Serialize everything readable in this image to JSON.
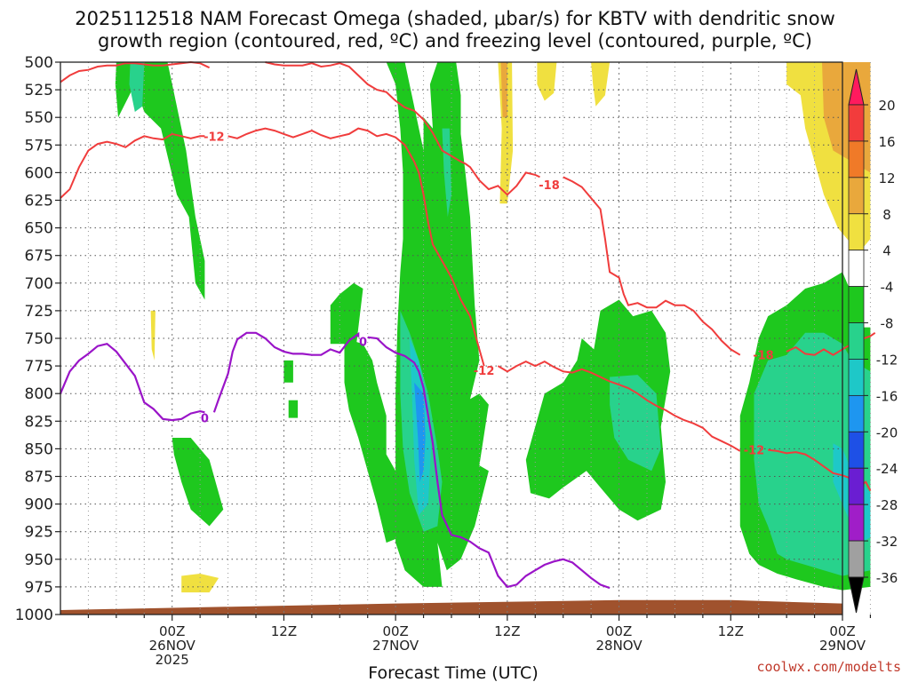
{
  "title": {
    "line1": "2025112518 NAM Forecast Omega (shaded, μbar/s) for KBTV with dendritic snow",
    "line2": "growth region (contoured, red, ºC) and freezing level (contoured, purple, ºC)"
  },
  "credit": "coolwx.com/modelts",
  "chart_data": {
    "type": "heatmap",
    "title": "2025112518 NAM Forecast Omega (shaded, μbar/s) for KBTV with dendritic snow growth region (contoured, red, ºC) and freezing level (contoured, purple, ºC)",
    "xlabel": "Forecast Time (UTC)",
    "ylabel": "",
    "x_range_hours": [
      -12,
      72
    ],
    "y_range_hpa": [
      1000,
      500
    ],
    "y_ticks": [
      500,
      525,
      550,
      575,
      600,
      625,
      650,
      675,
      700,
      725,
      750,
      775,
      800,
      825,
      850,
      875,
      900,
      925,
      950,
      975,
      1000
    ],
    "x_ticks": [
      {
        "hour": 0,
        "label": "00Z",
        "sub1": "26NOV",
        "sub2": "2025"
      },
      {
        "hour": 12,
        "label": "12Z",
        "sub1": "",
        "sub2": ""
      },
      {
        "hour": 24,
        "label": "00Z",
        "sub1": "27NOV",
        "sub2": ""
      },
      {
        "hour": 36,
        "label": "12Z",
        "sub1": "",
        "sub2": ""
      },
      {
        "hour": 48,
        "label": "00Z",
        "sub1": "28NOV",
        "sub2": ""
      },
      {
        "hour": 60,
        "label": "12Z",
        "sub1": "",
        "sub2": ""
      },
      {
        "hour": 72,
        "label": "00Z",
        "sub1": "29NOV",
        "sub2": ""
      }
    ],
    "grid": true,
    "colorbar": {
      "labels": [
        "20",
        "16",
        "12",
        "8",
        "4",
        "-4",
        "-8",
        "-12",
        "-16",
        "-20",
        "-24",
        "-28",
        "-32",
        "-36"
      ],
      "colors": [
        "#ff1a5e",
        "#f23c3c",
        "#f07a28",
        "#e9a83c",
        "#f0e040",
        "#ffffff",
        "#1ec81e",
        "#28d28c",
        "#1ec8c8",
        "#1e96f0",
        "#1e50e6",
        "#6a1ed2",
        "#a01ec8",
        "#a0a0a0",
        "#000000"
      ]
    },
    "colors": {
      "dgz_contour": "#f03c3c",
      "freezing_contour": "#9a14c8",
      "ground": "#a0522d"
    },
    "contour_labels": [
      {
        "text": "-12",
        "kind": "dgz",
        "hour": 4.5,
        "p": 567
      },
      {
        "text": "-18",
        "kind": "dgz",
        "hour": 40.5,
        "p": 611
      },
      {
        "text": "-12",
        "kind": "dgz",
        "hour": 33.5,
        "p": 779
      },
      {
        "text": "-18",
        "kind": "dgz",
        "hour": 63.5,
        "p": 765
      },
      {
        "text": "-12",
        "kind": "dgz",
        "hour": 62.5,
        "p": 851
      },
      {
        "text": "0",
        "kind": "frz",
        "hour": 3.5,
        "p": 822
      },
      {
        "text": "0",
        "kind": "frz",
        "hour": 20.5,
        "p": 753
      }
    ],
    "dgz_minus12": [
      [
        [
          -12,
          623
        ],
        [
          -11,
          615
        ],
        [
          -10,
          595
        ],
        [
          -9,
          580
        ],
        [
          -8,
          574
        ],
        [
          -7,
          572
        ],
        [
          -6,
          574
        ],
        [
          -5,
          577
        ],
        [
          -4,
          571
        ],
        [
          -3,
          567
        ],
        [
          -2,
          569
        ],
        [
          -1,
          570
        ],
        [
          0,
          565
        ],
        [
          1,
          567
        ],
        [
          2,
          569
        ],
        [
          3,
          567
        ],
        [
          3.5,
          567
        ]
      ],
      [
        [
          6,
          567
        ],
        [
          7,
          569
        ],
        [
          8,
          565
        ],
        [
          9,
          562
        ],
        [
          10,
          560
        ],
        [
          11,
          562
        ],
        [
          12,
          565
        ],
        [
          13,
          568
        ],
        [
          14,
          565
        ],
        [
          15,
          562
        ],
        [
          16,
          566
        ],
        [
          17,
          569
        ],
        [
          18,
          567
        ],
        [
          19,
          565
        ],
        [
          20,
          560
        ],
        [
          21,
          562
        ],
        [
          22,
          567
        ],
        [
          23,
          565
        ],
        [
          24,
          568
        ],
        [
          25,
          575
        ],
        [
          26,
          590
        ],
        [
          26.5,
          600
        ],
        [
          27,
          620
        ],
        [
          27.5,
          645
        ],
        [
          28,
          665
        ],
        [
          29,
          680
        ],
        [
          30,
          695
        ],
        [
          31,
          715
        ],
        [
          32,
          730
        ],
        [
          32.5,
          745
        ],
        [
          33,
          760
        ],
        [
          33.5,
          775
        ]
      ],
      [
        [
          35,
          775
        ],
        [
          36,
          780
        ],
        [
          37,
          775
        ],
        [
          38,
          771
        ],
        [
          39,
          775
        ],
        [
          40,
          771
        ],
        [
          41,
          776
        ],
        [
          42,
          780
        ],
        [
          43,
          781
        ],
        [
          44,
          778
        ],
        [
          45,
          781
        ],
        [
          46,
          785
        ],
        [
          47,
          789
        ],
        [
          48,
          792
        ],
        [
          49,
          795
        ],
        [
          50,
          800
        ],
        [
          51,
          806
        ],
        [
          52,
          811
        ],
        [
          53,
          815
        ],
        [
          54,
          820
        ],
        [
          55,
          824
        ],
        [
          56,
          827
        ],
        [
          57,
          831
        ],
        [
          58,
          839
        ],
        [
          59,
          843
        ],
        [
          60,
          847
        ],
        [
          61,
          852
        ]
      ],
      [
        [
          64,
          851
        ],
        [
          65,
          852
        ],
        [
          66,
          854
        ],
        [
          67,
          853
        ],
        [
          68,
          855
        ],
        [
          69,
          860
        ],
        [
          70,
          866
        ],
        [
          71,
          872
        ],
        [
          72,
          874
        ],
        [
          73,
          877
        ],
        [
          74,
          883
        ],
        [
          74.5,
          880
        ],
        [
          75,
          888
        ]
      ]
    ],
    "dgz_minus18": [
      [
        [
          -12,
          518
        ],
        [
          -11,
          512
        ],
        [
          -10,
          508
        ],
        [
          -9,
          507
        ],
        [
          -8,
          504
        ],
        [
          -7,
          503
        ],
        [
          -6,
          503
        ],
        [
          -5,
          501
        ],
        [
          -4,
          501
        ],
        [
          -3,
          502
        ],
        [
          -2,
          503
        ],
        [
          -1,
          503
        ],
        [
          0,
          502
        ],
        [
          1,
          501
        ],
        [
          2,
          500
        ],
        [
          3,
          501
        ],
        [
          4,
          505
        ]
      ],
      [
        [
          10,
          500
        ],
        [
          11,
          502
        ],
        [
          12,
          503
        ],
        [
          13,
          503
        ],
        [
          14,
          503
        ],
        [
          15,
          501
        ],
        [
          16,
          504
        ],
        [
          17,
          503
        ],
        [
          18,
          501
        ],
        [
          19,
          504
        ],
        [
          20,
          512
        ],
        [
          21,
          520
        ],
        [
          22,
          525
        ],
        [
          23,
          527
        ],
        [
          24,
          535
        ],
        [
          25,
          541
        ],
        [
          26,
          544
        ],
        [
          27,
          552
        ],
        [
          28,
          564
        ],
        [
          29,
          580
        ],
        [
          30,
          585
        ],
        [
          31,
          590
        ],
        [
          31.5,
          592
        ],
        [
          32,
          595
        ],
        [
          33,
          607
        ],
        [
          34,
          615
        ],
        [
          35,
          612
        ],
        [
          36,
          620
        ],
        [
          37,
          612
        ],
        [
          38,
          600
        ],
        [
          39,
          602
        ],
        [
          39.5,
          604
        ]
      ],
      [
        [
          42,
          604
        ],
        [
          43,
          608
        ],
        [
          44,
          613
        ],
        [
          45,
          623
        ],
        [
          46,
          633
        ],
        [
          46.5,
          660
        ],
        [
          47,
          690
        ],
        [
          48,
          695
        ],
        [
          48.5,
          710
        ],
        [
          49,
          720
        ],
        [
          50,
          718
        ],
        [
          51,
          722
        ],
        [
          52,
          722
        ],
        [
          53,
          716
        ],
        [
          54,
          720
        ],
        [
          55,
          720
        ],
        [
          56,
          725
        ],
        [
          57,
          735
        ],
        [
          58,
          742
        ],
        [
          59,
          752
        ],
        [
          60,
          760
        ],
        [
          61,
          765
        ]
      ],
      [
        [
          66,
          762
        ],
        [
          67,
          758
        ],
        [
          68,
          764
        ],
        [
          69,
          765
        ],
        [
          70,
          760
        ],
        [
          71,
          765
        ],
        [
          72,
          760
        ],
        [
          73,
          755
        ],
        [
          74,
          751
        ],
        [
          75,
          748
        ],
        [
          75.5,
          745
        ]
      ]
    ],
    "freezing_0c": [
      [
        [
          -12,
          800
        ],
        [
          -11,
          780
        ],
        [
          -10,
          770
        ],
        [
          -9,
          764
        ],
        [
          -8,
          757
        ],
        [
          -7,
          755
        ],
        [
          -6,
          762
        ],
        [
          -5,
          773
        ],
        [
          -4,
          784
        ],
        [
          -3,
          808
        ],
        [
          -2,
          814
        ],
        [
          -1,
          823
        ],
        [
          0,
          824
        ],
        [
          1,
          823
        ],
        [
          2,
          818
        ],
        [
          3,
          816
        ],
        [
          3.5,
          817
        ]
      ],
      [
        [
          4.5,
          817
        ],
        [
          5,
          805
        ],
        [
          6,
          782
        ],
        [
          6.5,
          762
        ],
        [
          7,
          751
        ],
        [
          8,
          745
        ],
        [
          9,
          745
        ],
        [
          10,
          750
        ],
        [
          11,
          758
        ],
        [
          12,
          762
        ],
        [
          13,
          764
        ],
        [
          14,
          764
        ],
        [
          15,
          765
        ],
        [
          16,
          765
        ],
        [
          17,
          760
        ],
        [
          18,
          763
        ],
        [
          19,
          752
        ],
        [
          20,
          746
        ],
        [
          20,
          749
        ]
      ],
      [
        [
          21,
          749
        ],
        [
          22,
          750
        ],
        [
          23,
          758
        ],
        [
          24,
          763
        ],
        [
          25,
          766
        ],
        [
          26,
          772
        ],
        [
          26.5,
          780
        ],
        [
          27,
          795
        ],
        [
          27.5,
          820
        ],
        [
          28,
          845
        ],
        [
          28.5,
          880
        ],
        [
          29,
          910
        ],
        [
          30,
          928
        ],
        [
          31,
          930
        ],
        [
          32,
          934
        ],
        [
          33,
          940
        ],
        [
          34,
          944
        ],
        [
          35,
          965
        ],
        [
          36,
          975
        ],
        [
          37,
          973
        ],
        [
          38,
          965
        ],
        [
          39,
          960
        ],
        [
          40,
          955
        ],
        [
          41,
          952
        ],
        [
          42,
          950
        ],
        [
          43,
          953
        ],
        [
          44,
          960
        ],
        [
          45,
          967
        ],
        [
          46,
          973
        ],
        [
          47,
          976
        ]
      ]
    ],
    "ground_surface_hpa": 993,
    "omega_regions_note": "shaded omega regions are drawn by the template script"
  }
}
